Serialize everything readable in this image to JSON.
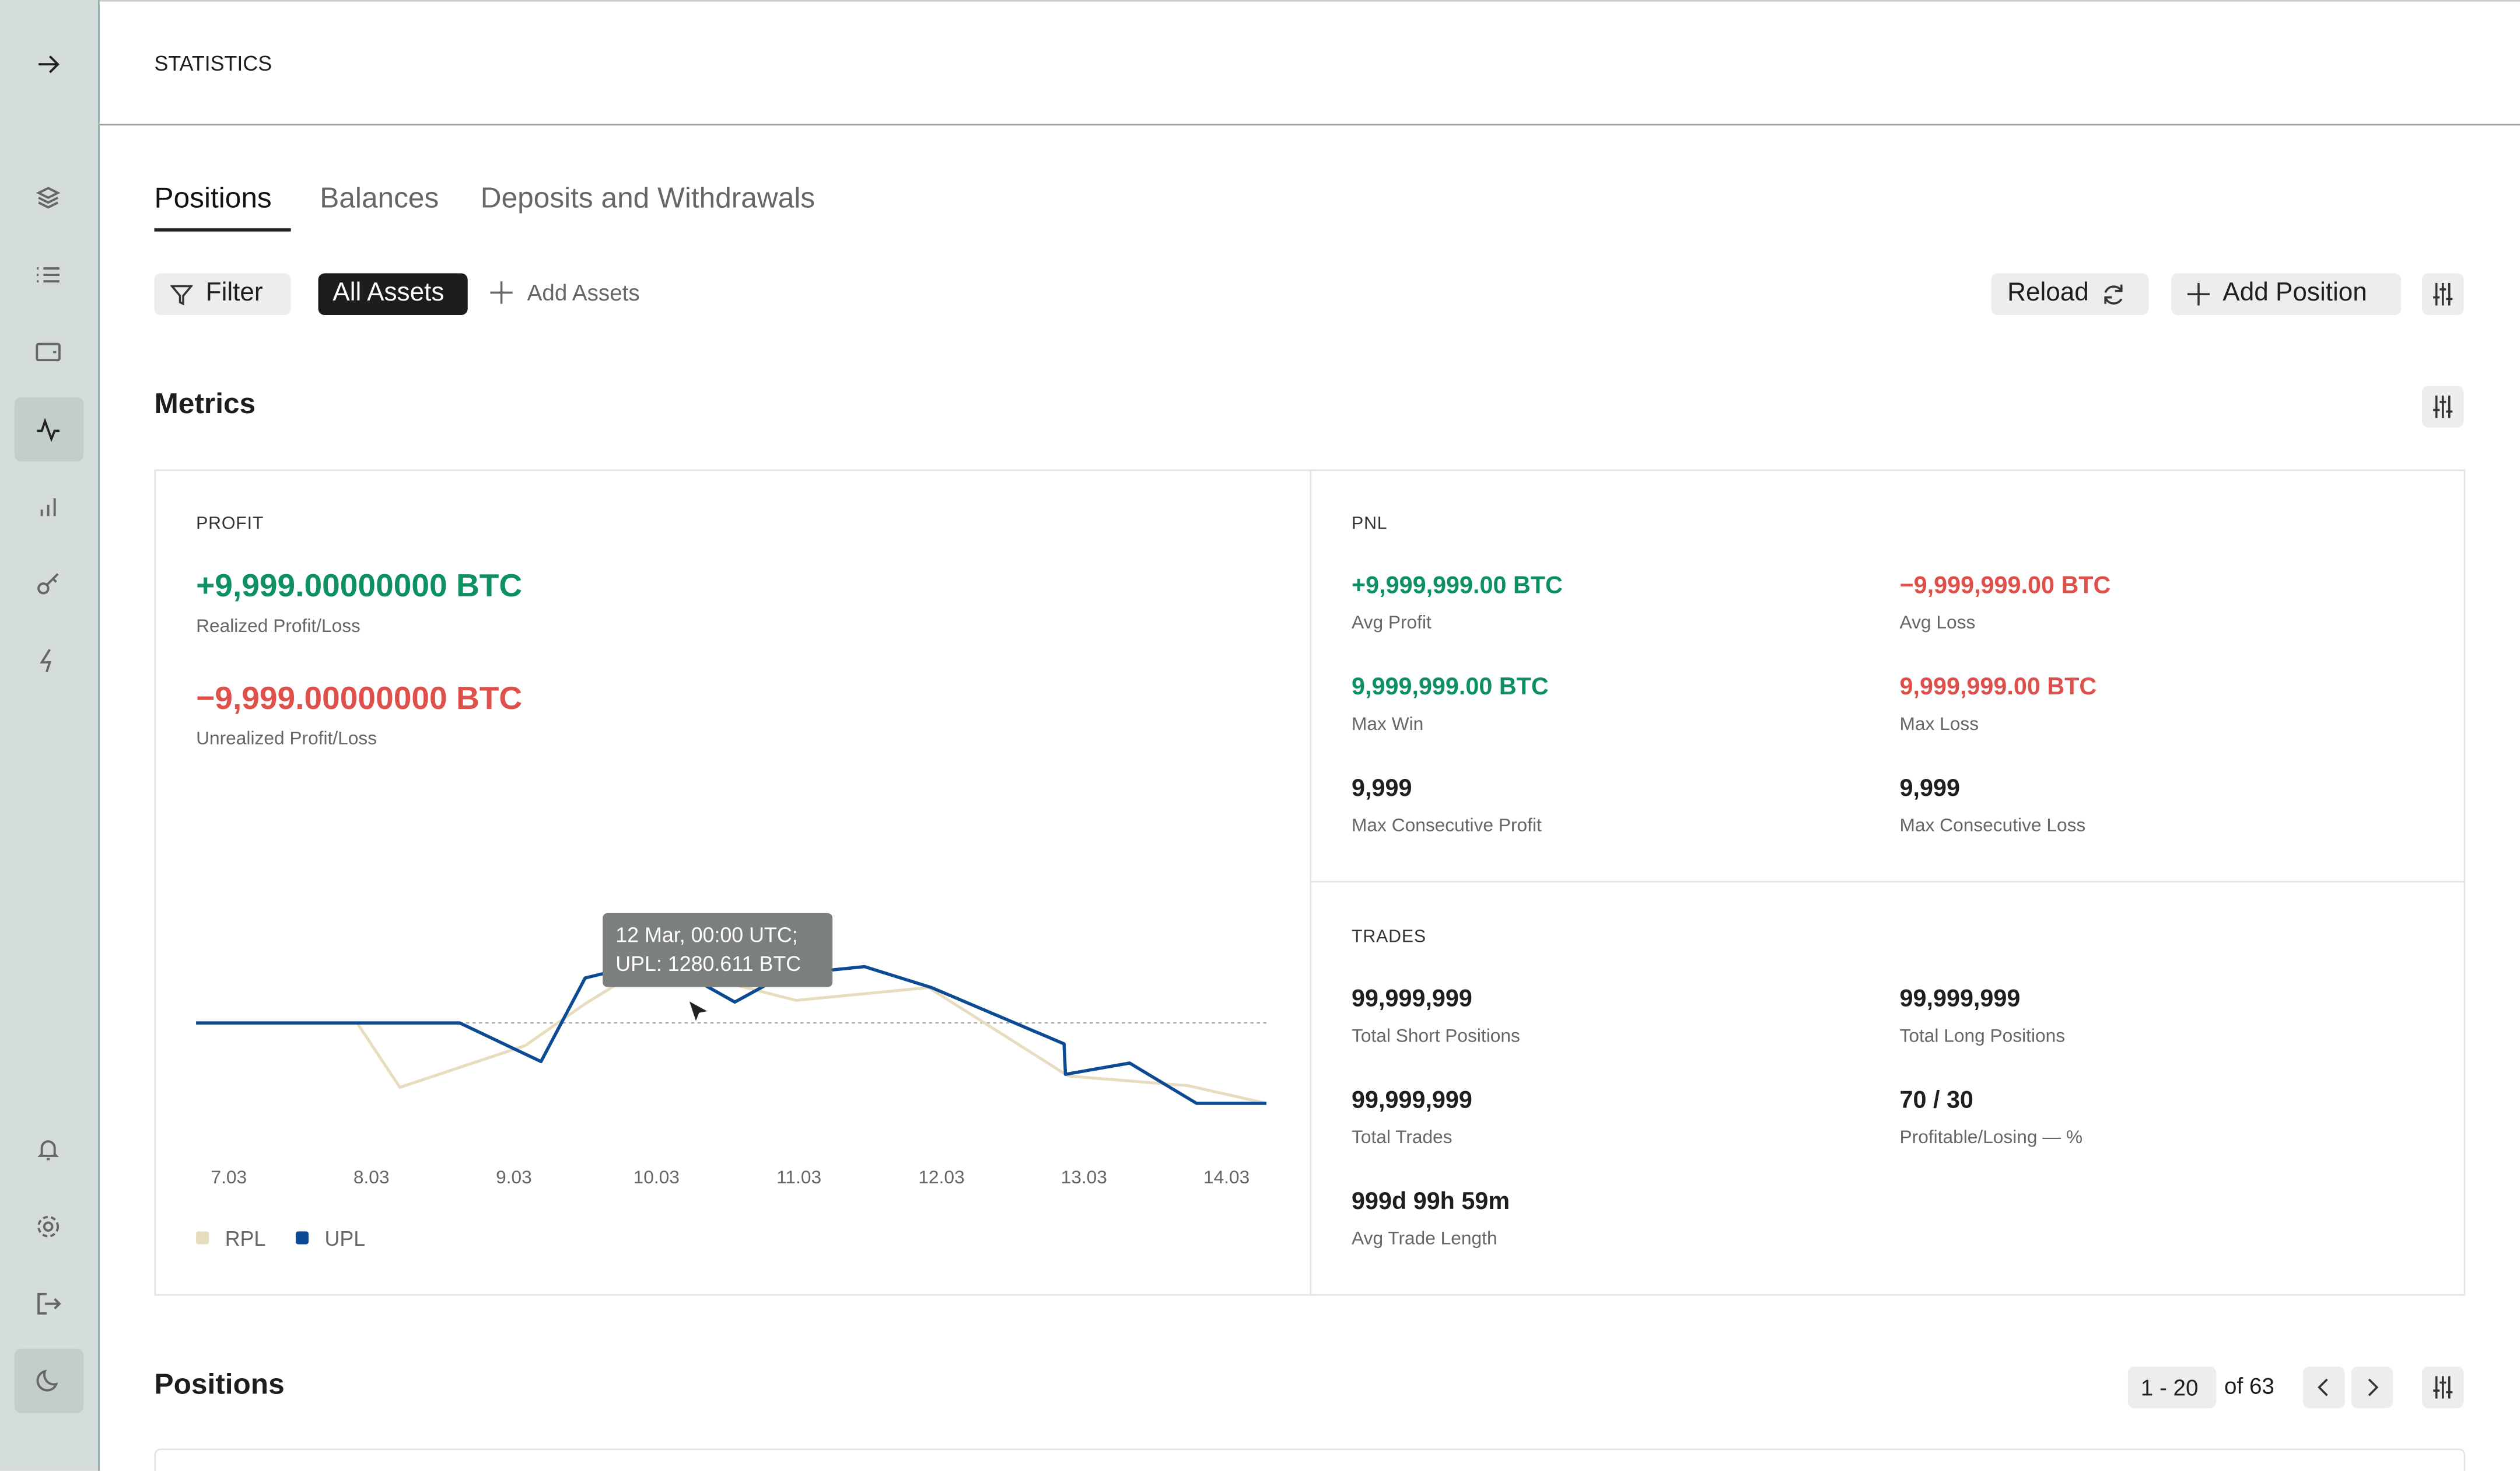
{
  "header": {
    "title": "STATISTICS"
  },
  "tabs": [
    "Positions",
    "Balances",
    "Deposits and Withdrawals"
  ],
  "toolbar": {
    "filter": "Filter",
    "assets": "All Assets",
    "add_assets": "Add Assets",
    "reload": "Reload",
    "add_position": "Add Position"
  },
  "metrics": {
    "title": "Metrics",
    "profit": {
      "label": "PROFIT",
      "items": [
        {
          "value": "+9,999.00000000 BTC",
          "label": "Realized Profit/Loss"
        },
        {
          "value": "−9,999.00000000 BTC",
          "label": "Unrealized Profit/Loss"
        }
      ]
    },
    "pnl": {
      "label": "PNL",
      "items": [
        {
          "value": "+9,999,999.00 BTC",
          "label": "Avg Profit"
        },
        {
          "value": "−9,999,999.00 BTC",
          "label": "Avg Loss"
        },
        {
          "value": "9,999,999.00 BTC",
          "label": "Max Win"
        },
        {
          "value": "9,999,999.00 BTC",
          "label": "Max Loss"
        },
        {
          "value": "9,999",
          "label": "Max Consecutive Profit"
        },
        {
          "value": "9,999",
          "label": "Max Consecutive Loss"
        }
      ]
    },
    "trades": {
      "label": "TRADES",
      "items": [
        {
          "value": "99,999,999",
          "label": "Total Short  Positions"
        },
        {
          "value": "99,999,999",
          "label": "Total Long Positions"
        },
        {
          "value": "99,999,999",
          "label": "Total Trades"
        },
        {
          "value": "70 / 30",
          "label": "Profitable/Losing — %"
        },
        {
          "value": "999d 99h 59m",
          "label": "Avg Trade Length"
        }
      ]
    }
  },
  "chart_data": {
    "type": "line",
    "xlim": [
      6.77,
      14.28
    ],
    "ylim": [
      -2400,
      2500
    ],
    "xticks": [
      {
        "value": 7,
        "label": "7.03"
      },
      {
        "value": 8,
        "label": "8.03"
      },
      {
        "value": 9,
        "label": "9.03"
      },
      {
        "value": 10,
        "label": "10.03"
      },
      {
        "value": 11,
        "label": "11.03"
      },
      {
        "value": 12,
        "label": "12.03"
      },
      {
        "value": 13,
        "label": "13.03"
      },
      {
        "value": 14,
        "label": "14.03"
      }
    ],
    "series": [
      {
        "name": "RPL",
        "color": "#e8dcbf",
        "x": [
          6.77,
          7.9,
          8.2,
          9.08,
          9.5,
          9.85,
          10.36,
          10.98,
          11.91,
          12.89,
          13.73,
          14.28
        ],
        "values": [
          0,
          0,
          -1510,
          -530,
          450,
          1170,
          1055,
          530,
          830,
          -1245,
          -1470,
          -1885
        ]
      },
      {
        "name": "UPL",
        "color": "#0d4a94",
        "x": [
          6.77,
          8.62,
          9.19,
          9.5,
          9.78,
          10.13,
          10.55,
          10.9,
          11.46,
          11.93,
          12.86,
          12.87,
          13.32,
          13.79,
          14.28
        ],
        "values": [
          0,
          0,
          -905,
          1055,
          1280,
          1280,
          490,
          1130,
          1320,
          830,
          -490,
          -1205,
          -940,
          -1885,
          -1885
        ]
      }
    ],
    "tooltip": [
      "12 Mar, 00:00 UTC;",
      "UPL: 1280.611 BTC"
    ]
  },
  "positions": {
    "title": "Positions",
    "range": "1 - 20",
    "total": "of 63"
  }
}
